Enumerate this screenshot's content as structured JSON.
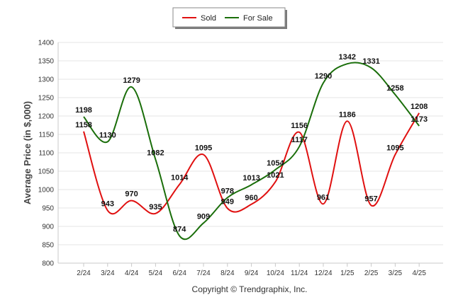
{
  "chart_data": {
    "type": "line",
    "categories": [
      "2/24",
      "3/24",
      "4/24",
      "5/24",
      "6/24",
      "7/24",
      "8/24",
      "9/24",
      "10/24",
      "11/24",
      "12/24",
      "1/25",
      "2/25",
      "3/25",
      "4/25"
    ],
    "series": [
      {
        "name": "Sold",
        "color": "#e01010",
        "values": [
          1158,
          943,
          970,
          935,
          1014,
          1095,
          949,
          960,
          1021,
          1156,
          961,
          1186,
          957,
          1095,
          1208
        ]
      },
      {
        "name": "For Sale",
        "color": "#1a6e0a",
        "values": [
          1198,
          1130,
          1279,
          1082,
          874,
          909,
          978,
          1013,
          1054,
          1117,
          1290,
          1342,
          1331,
          1258,
          1173
        ]
      }
    ],
    "ylabel": "Average Price (in $,000)",
    "ylim": [
      800,
      1400
    ],
    "yticks": [
      800,
      850,
      900,
      950,
      1000,
      1050,
      1100,
      1150,
      1200,
      1250,
      1300,
      1350,
      1400
    ],
    "grid": true,
    "legend_position": "top-center",
    "footer": "Copyright © Trendgraphix, Inc."
  }
}
